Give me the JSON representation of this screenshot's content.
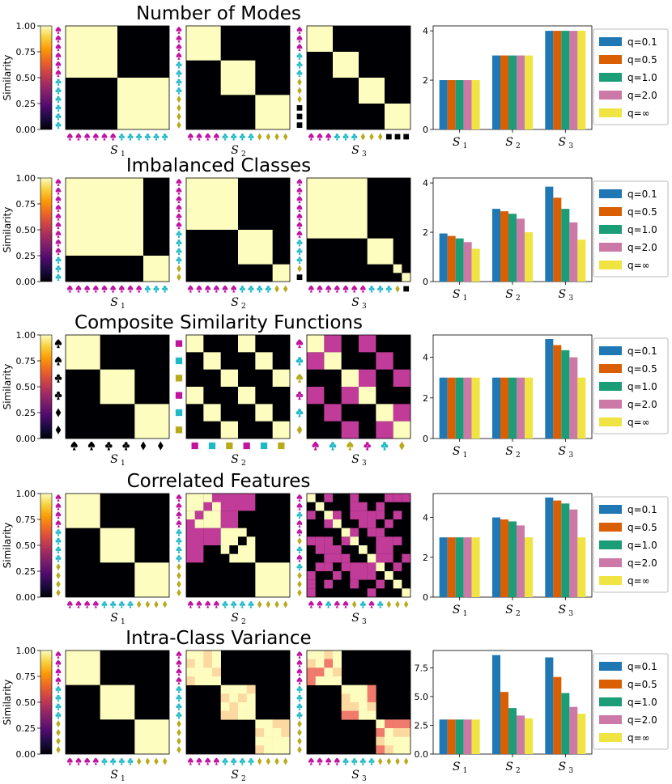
{
  "palette": {
    "black": "#000004",
    "cream": "#fcfdbf",
    "magenta": "#c13b98",
    "peach": "#fdd9a2",
    "salmon": "#f07a6b",
    "spade": "#c0139e",
    "club": "#1eb9c7",
    "diamond": "#b8aa1b",
    "square": "#000000",
    "colorbar": [
      "#000004",
      "#1b0c41",
      "#4f0a6d",
      "#781c6d",
      "#a52c60",
      "#cf4446",
      "#ed6925",
      "#fb9b06",
      "#f7d13d",
      "#fcfdbf"
    ]
  },
  "q_legend": [
    {
      "label": "q=0.1",
      "color": "#1f77b4"
    },
    {
      "label": "q=0.5",
      "color": "#d95f02"
    },
    {
      "label": "q=1.0",
      "color": "#1b9e77"
    },
    {
      "label": "q=2.0",
      "color": "#cc79a7"
    },
    {
      "label": "q=∞",
      "color": "#f0e442"
    }
  ],
  "colorbar_ticks": [
    "1.00",
    "0.75",
    "0.50",
    "0.25",
    "0.00"
  ],
  "colorbar_label": "Similarity",
  "xlabels": [
    {
      "base": "S",
      "sub": "1"
    },
    {
      "base": "S",
      "sub": "2"
    },
    {
      "base": "S",
      "sub": "3"
    }
  ],
  "rows": [
    {
      "title": "Number of Modes",
      "matrices": [
        {
          "size": 12,
          "blocks": [
            [
              0,
              6
            ],
            [
              6,
              12
            ]
          ],
          "extra": [],
          "symbols": [
            "spade",
            "spade",
            "spade",
            "spade",
            "spade",
            "spade",
            "club",
            "club",
            "club",
            "club",
            "club",
            "club"
          ]
        },
        {
          "size": 12,
          "blocks": [
            [
              0,
              4
            ],
            [
              4,
              8
            ],
            [
              8,
              12
            ]
          ],
          "extra": [],
          "symbols": [
            "spade",
            "spade",
            "spade",
            "spade",
            "club",
            "club",
            "club",
            "club",
            "diamond",
            "diamond",
            "diamond",
            "diamond"
          ]
        },
        {
          "size": 12,
          "blocks": [
            [
              0,
              3
            ],
            [
              3,
              6
            ],
            [
              6,
              9
            ],
            [
              9,
              12
            ]
          ],
          "extra": [],
          "symbols": [
            "spade",
            "spade",
            "spade",
            "club",
            "club",
            "club",
            "diamond",
            "diamond",
            "diamond",
            "square",
            "square",
            "square"
          ]
        }
      ],
      "chart_data": {
        "type": "bar",
        "categories": [
          "S1",
          "S2",
          "S3"
        ],
        "ylim": [
          0,
          4.2
        ],
        "yticks": [
          0,
          2,
          4
        ],
        "series": [
          {
            "name": "q=0.1",
            "values": [
              2,
              3,
              4
            ]
          },
          {
            "name": "q=0.5",
            "values": [
              2,
              3,
              4
            ]
          },
          {
            "name": "q=1.0",
            "values": [
              2,
              3,
              4
            ]
          },
          {
            "name": "q=2.0",
            "values": [
              2,
              3,
              4
            ]
          },
          {
            "name": "q=∞",
            "values": [
              2,
              3,
              4
            ]
          }
        ]
      }
    },
    {
      "title": "Imbalanced Classes",
      "matrices": [
        {
          "size": 12,
          "blocks": [
            [
              0,
              9
            ],
            [
              9,
              12
            ]
          ],
          "extra": [],
          "symbols": [
            "spade",
            "spade",
            "spade",
            "spade",
            "spade",
            "spade",
            "spade",
            "spade",
            "spade",
            "club",
            "club",
            "club"
          ]
        },
        {
          "size": 12,
          "blocks": [
            [
              0,
              6
            ],
            [
              6,
              10
            ],
            [
              10,
              12
            ]
          ],
          "extra": [],
          "symbols": [
            "spade",
            "spade",
            "spade",
            "spade",
            "spade",
            "spade",
            "club",
            "club",
            "club",
            "club",
            "diamond",
            "diamond"
          ]
        },
        {
          "size": 12,
          "blocks": [
            [
              0,
              7
            ],
            [
              7,
              10
            ],
            [
              10,
              11
            ],
            [
              11,
              12
            ]
          ],
          "extra": [],
          "symbols": [
            "spade",
            "spade",
            "spade",
            "spade",
            "spade",
            "spade",
            "spade",
            "club",
            "club",
            "club",
            "diamond",
            "square"
          ]
        }
      ],
      "chart_data": {
        "type": "bar",
        "categories": [
          "S1",
          "S2",
          "S3"
        ],
        "ylim": [
          0,
          4.2
        ],
        "yticks": [
          0,
          2,
          4
        ],
        "series": [
          {
            "name": "q=0.1",
            "values": [
              1.95,
              2.95,
              3.85
            ]
          },
          {
            "name": "q=0.5",
            "values": [
              1.85,
              2.85,
              3.4
            ]
          },
          {
            "name": "q=1.0",
            "values": [
              1.75,
              2.75,
              2.95
            ]
          },
          {
            "name": "q=2.0",
            "values": [
              1.6,
              2.55,
              2.4
            ]
          },
          {
            "name": "q=∞",
            "values": [
              1.33,
              2.0,
              1.7
            ]
          }
        ]
      }
    },
    {
      "title": "Composite Similarity Functions",
      "matrices": [
        {
          "size": 6,
          "blocks": [
            [
              0,
              2
            ],
            [
              2,
              4
            ],
            [
              4,
              6
            ]
          ],
          "extra": [],
          "symbols": [
            "spade",
            "spade",
            "club",
            "club",
            "diamond",
            "diamond"
          ],
          "symbol_colors": "black"
        },
        {
          "size": 6,
          "blocks": [
            [
              0,
              1
            ],
            [
              1,
              2
            ],
            [
              2,
              3
            ],
            [
              3,
              4
            ],
            [
              4,
              5
            ],
            [
              5,
              6
            ]
          ],
          "extra": [
            [
              0,
              3
            ],
            [
              3,
              0
            ],
            [
              1,
              4
            ],
            [
              4,
              1
            ],
            [
              2,
              5
            ],
            [
              5,
              2
            ]
          ],
          "symbols": [
            "square",
            "square",
            "square",
            "square",
            "square",
            "square"
          ],
          "square_colors": [
            "#c0139e",
            "#1eb9c7",
            "#b8aa1b",
            "#c0139e",
            "#1eb9c7",
            "#b8aa1b"
          ]
        },
        {
          "size": 6,
          "blocks": [
            [
              0,
              1
            ],
            [
              1,
              2
            ],
            [
              2,
              3
            ],
            [
              3,
              4
            ],
            [
              4,
              5
            ],
            [
              5,
              6
            ]
          ],
          "extra": [],
          "mid": [
            [
              0,
              1
            ],
            [
              1,
              0
            ],
            [
              0,
              3
            ],
            [
              3,
              0
            ],
            [
              1,
              4
            ],
            [
              4,
              1
            ],
            [
              2,
              3
            ],
            [
              3,
              2
            ],
            [
              2,
              5
            ],
            [
              5,
              2
            ],
            [
              4,
              5
            ],
            [
              5,
              4
            ]
          ],
          "symbols": [
            "spade",
            "club",
            "spade",
            "club",
            "club",
            "diamond"
          ],
          "symbol_color_list": [
            "#c0139e",
            "#1eb9c7",
            "#b8aa1b",
            "#c0139e",
            "#1eb9c7",
            "#b8aa1b"
          ]
        }
      ],
      "chart_data": {
        "type": "bar",
        "categories": [
          "S1",
          "S2",
          "S3"
        ],
        "ylim": [
          0,
          5.1
        ],
        "yticks": [
          0,
          2,
          4
        ],
        "series": [
          {
            "name": "q=0.1",
            "values": [
              3,
              3,
              4.9
            ]
          },
          {
            "name": "q=0.5",
            "values": [
              3,
              3,
              4.6
            ]
          },
          {
            "name": "q=1.0",
            "values": [
              3,
              3,
              4.35
            ]
          },
          {
            "name": "q=2.0",
            "values": [
              3,
              3,
              4.0
            ]
          },
          {
            "name": "q=∞",
            "values": [
              3,
              3,
              3.0
            ]
          }
        ]
      }
    },
    {
      "title": "Correlated Features",
      "matrices": [
        {
          "size": 12,
          "blocks": [
            [
              0,
              4
            ],
            [
              4,
              8
            ],
            [
              8,
              12
            ]
          ],
          "extra": [],
          "symbols": [
            "spade",
            "spade",
            "spade",
            "spade",
            "club",
            "club",
            "club",
            "club",
            "diamond",
            "diamond",
            "diamond",
            "diamond"
          ]
        },
        {
          "size": 12,
          "blocks": [
            [
              0,
              2
            ],
            [
              2,
              4
            ],
            [
              4,
              6
            ],
            [
              6,
              8
            ],
            [
              8,
              12
            ]
          ],
          "extra": [
            [
              0,
              2
            ],
            [
              2,
              0
            ],
            [
              1,
              3
            ],
            [
              3,
              1
            ],
            [
              4,
              6
            ],
            [
              6,
              4
            ],
            [
              5,
              7
            ],
            [
              7,
              5
            ]
          ],
          "midrect": [
            [
              0,
              2,
              2,
              6
            ],
            [
              2,
              0,
              6,
              2
            ],
            [
              2,
              4,
              2,
              2
            ],
            [
              4,
              2,
              2,
              2
            ]
          ],
          "symbols": [
            "spade",
            "spade",
            "spade",
            "spade",
            "club",
            "club",
            "club",
            "club",
            "diamond",
            "diamond",
            "diamond",
            "diamond"
          ]
        },
        {
          "size": 12,
          "blocks": [
            [
              0,
              1
            ],
            [
              1,
              2
            ],
            [
              2,
              3
            ],
            [
              3,
              4
            ],
            [
              4,
              5
            ],
            [
              5,
              6
            ],
            [
              6,
              7
            ],
            [
              7,
              8
            ],
            [
              8,
              9
            ],
            [
              9,
              10
            ],
            [
              10,
              11
            ],
            [
              11,
              12
            ]
          ],
          "extra": [],
          "random_mid": true,
          "symbols": [
            "spade",
            "spade",
            "club",
            "spade",
            "spade",
            "diamond",
            "club",
            "spade",
            "club",
            "diamond",
            "diamond",
            "diamond"
          ],
          "symbol_color_list": [
            "#c0139e",
            "#c0139e",
            "#1eb9c7",
            "#c0139e",
            "#c0139e",
            "#b8aa1b",
            "#1eb9c7",
            "#c0139e",
            "#1eb9c7",
            "#b8aa1b",
            "#b8aa1b",
            "#b8aa1b"
          ]
        }
      ],
      "chart_data": {
        "type": "bar",
        "categories": [
          "S1",
          "S2",
          "S3"
        ],
        "ylim": [
          0,
          5.2
        ],
        "yticks": [
          0,
          2,
          4
        ],
        "series": [
          {
            "name": "q=0.1",
            "values": [
              3,
              4.0,
              5.0
            ]
          },
          {
            "name": "q=0.5",
            "values": [
              3,
              3.9,
              4.85
            ]
          },
          {
            "name": "q=1.0",
            "values": [
              3,
              3.8,
              4.7
            ]
          },
          {
            "name": "q=2.0",
            "values": [
              3,
              3.6,
              4.4
            ]
          },
          {
            "name": "q=∞",
            "values": [
              3,
              3.0,
              3.0
            ]
          }
        ]
      }
    },
    {
      "title": "Intra-Class Variance",
      "matrices": [
        {
          "size": 12,
          "blocks": [
            [
              0,
              4
            ],
            [
              4,
              8
            ],
            [
              8,
              12
            ]
          ],
          "extra": [],
          "symbols": [
            "spade",
            "spade",
            "spade",
            "spade",
            "club",
            "club",
            "club",
            "club",
            "diamond",
            "diamond",
            "diamond",
            "diamond"
          ]
        },
        {
          "size": 12,
          "blocks": [
            [
              0,
              4
            ],
            [
              4,
              8
            ],
            [
              8,
              12
            ]
          ],
          "extra": [],
          "variance": "mild",
          "symbols": [
            "spade",
            "spade",
            "spade",
            "spade",
            "club",
            "club",
            "club",
            "club",
            "diamond",
            "diamond",
            "diamond",
            "diamond"
          ]
        },
        {
          "size": 12,
          "blocks": [
            [
              0,
              4
            ],
            [
              4,
              8
            ],
            [
              8,
              12
            ]
          ],
          "extra": [],
          "variance": "strong",
          "symbols": [
            "spade",
            "spade",
            "spade",
            "spade",
            "club",
            "club",
            "club",
            "club",
            "diamond",
            "diamond",
            "diamond",
            "diamond"
          ]
        }
      ],
      "chart_data": {
        "type": "bar",
        "categories": [
          "S1",
          "S2",
          "S3"
        ],
        "ylim": [
          0,
          9.0
        ],
        "yticks": [
          0.0,
          2.5,
          5.0,
          7.5
        ],
        "ytick_labels": [
          "0.0",
          "2.5",
          "5.0",
          "7.5"
        ],
        "series": [
          {
            "name": "q=0.1",
            "values": [
              3,
              8.6,
              8.4
            ]
          },
          {
            "name": "q=0.5",
            "values": [
              3,
              5.4,
              6.7
            ]
          },
          {
            "name": "q=1.0",
            "values": [
              3,
              4.0,
              5.3
            ]
          },
          {
            "name": "q=2.0",
            "values": [
              3,
              3.35,
              4.1
            ]
          },
          {
            "name": "q=∞",
            "values": [
              3,
              3.1,
              3.5
            ]
          }
        ]
      }
    }
  ]
}
